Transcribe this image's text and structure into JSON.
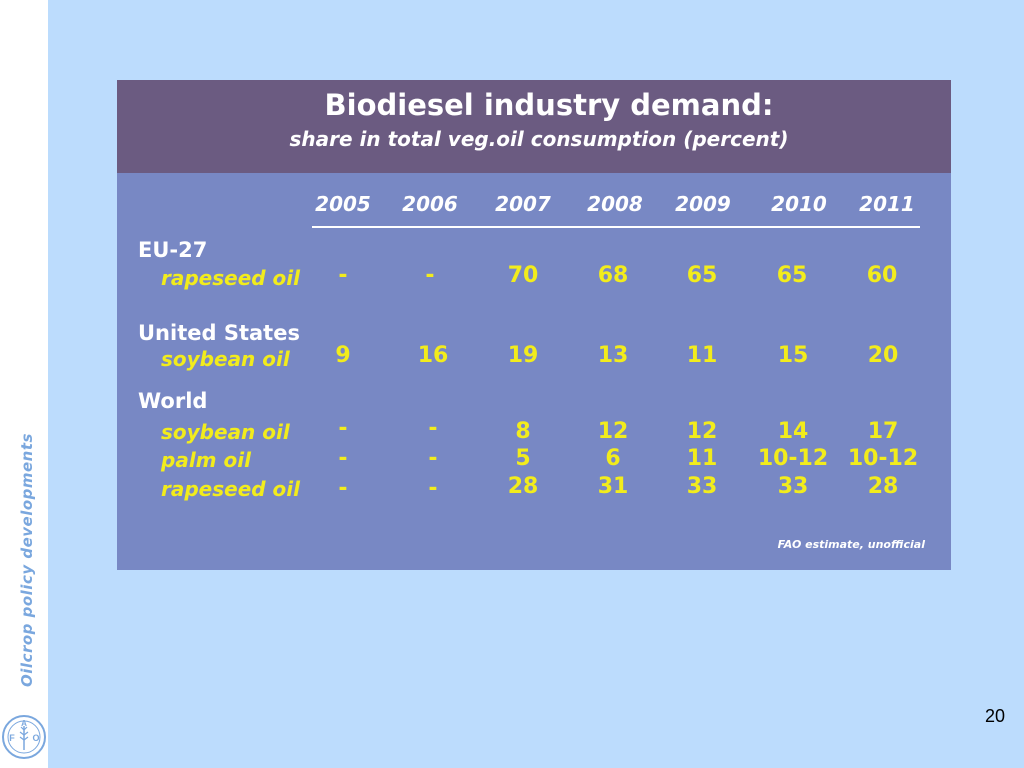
{
  "sidebar": {
    "label": "Oilcrop policy developments",
    "logo_letters": [
      "F",
      "A",
      "O"
    ]
  },
  "slide_number": "20",
  "panel": {
    "title": "Biodiesel industry demand:",
    "subtitle": "share in total veg.oil consumption (percent)",
    "years": [
      "2005",
      "2006",
      "2007",
      "2008",
      "2009",
      "2010",
      "2011"
    ],
    "groups": {
      "eu": {
        "name": "EU-27",
        "rows": [
          {
            "label": "rapeseed oil",
            "values": [
              "-",
              "-",
              "70",
              "68",
              "65",
              "65",
              "60"
            ]
          }
        ]
      },
      "us": {
        "name": "United States",
        "rows": [
          {
            "label": "soybean oil",
            "values": [
              "9",
              "16",
              "19",
              "13",
              "11",
              "15",
              "20"
            ]
          }
        ]
      },
      "world": {
        "name": "World",
        "rows": [
          {
            "label": "soybean oil",
            "values": [
              "-",
              "-",
              "8",
              "12",
              "12",
              "14",
              "17"
            ]
          },
          {
            "label": "palm oil",
            "values": [
              "-",
              "-",
              "5",
              "6",
              "11",
              "10-12",
              "10-12"
            ]
          },
          {
            "label": "rapeseed oil",
            "values": [
              "-",
              "-",
              "28",
              "31",
              "33",
              "33",
              "28"
            ]
          }
        ]
      }
    },
    "source_note": "FAO estimate, unofficial"
  }
}
